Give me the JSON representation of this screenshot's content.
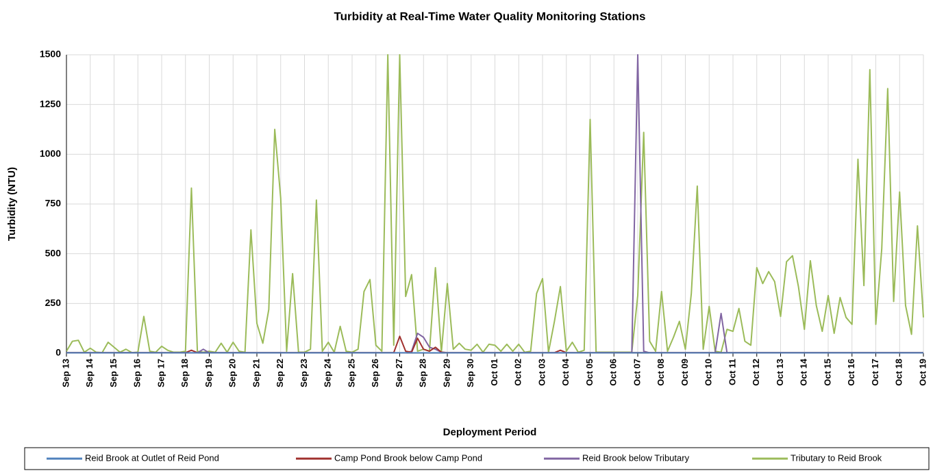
{
  "chart_data": {
    "type": "line",
    "title": "Turbidity at Real-Time Water Quality Monitoring Stations",
    "xlabel": "Deployment Period",
    "ylabel": "Turbidity (NTU)",
    "x": [
      0,
      0.25,
      0.5,
      0.75,
      1,
      1.25,
      1.5,
      1.75,
      2,
      2.25,
      2.5,
      2.75,
      3,
      3.25,
      3.5,
      3.75,
      4,
      4.25,
      4.5,
      4.75,
      5,
      5.25,
      5.5,
      5.75,
      6,
      6.25,
      6.5,
      6.75,
      7,
      7.25,
      7.5,
      7.75,
      8,
      8.25,
      8.5,
      8.75,
      9,
      9.25,
      9.5,
      9.75,
      10,
      10.25,
      10.5,
      10.75,
      11,
      11.25,
      11.5,
      11.75,
      12,
      12.25,
      12.5,
      12.75,
      13,
      13.25,
      13.5,
      13.75,
      14,
      14.25,
      14.5,
      14.75,
      15,
      15.25,
      15.5,
      15.75,
      16,
      16.25,
      16.5,
      16.75,
      17,
      17.25,
      17.5,
      17.75,
      18,
      18.25,
      18.5,
      18.75,
      19,
      19.25,
      19.5,
      19.75,
      20,
      20.25,
      20.5,
      20.75,
      21,
      21.25,
      21.5,
      21.75,
      22,
      22.25,
      22.5,
      22.75,
      23,
      23.25,
      23.5,
      23.75,
      24,
      24.25,
      24.5,
      24.75,
      25,
      25.25,
      25.5,
      25.75,
      26,
      26.25,
      26.5,
      26.75,
      27,
      27.25,
      27.5,
      27.75,
      28,
      28.25,
      28.5,
      28.75,
      29,
      29.25,
      29.5,
      29.75,
      30,
      30.25,
      30.5,
      30.75,
      31,
      31.25,
      31.5,
      31.75,
      32,
      32.25,
      32.5,
      32.75,
      33,
      33.25,
      33.5,
      33.75,
      34,
      34.25,
      34.5,
      34.75,
      35,
      35.25,
      35.5,
      35.75,
      36
    ],
    "series": [
      {
        "name": "Reid Brook at Outlet of Reid Pond",
        "color": "#4f81bd",
        "values": [
          2,
          2,
          2,
          2,
          2,
          2,
          2,
          2,
          2,
          2,
          2,
          2,
          2,
          2,
          2,
          2,
          2,
          2,
          2,
          2,
          2,
          2,
          2,
          2,
          2,
          2,
          2,
          2,
          2,
          2,
          2,
          2,
          2,
          2,
          2,
          2,
          2,
          2,
          2,
          2,
          2,
          2,
          2,
          2,
          2,
          2,
          2,
          2,
          2,
          2,
          2,
          2,
          2,
          2,
          2,
          2,
          2,
          2,
          2,
          2,
          2,
          2,
          2,
          2,
          2,
          2,
          2,
          2,
          2,
          2,
          2,
          2,
          2,
          2,
          2,
          2,
          2,
          2,
          2,
          2,
          2,
          2,
          2,
          2,
          2,
          2,
          2,
          2,
          2,
          2,
          2,
          2,
          2,
          2,
          2,
          2,
          2,
          2,
          2,
          2,
          2,
          2,
          2,
          2,
          2,
          2,
          2,
          2,
          2,
          2,
          2,
          2,
          2,
          2,
          2,
          2,
          2,
          2,
          2,
          2,
          2,
          2,
          2,
          2,
          2,
          2,
          2,
          2,
          2,
          2,
          2,
          2,
          2,
          2,
          2,
          2,
          2,
          2,
          2,
          2,
          2,
          2,
          2,
          2,
          2
        ]
      },
      {
        "name": "Camp Pond Brook below Camp Pond",
        "color": "#a0302d",
        "values": [
          3,
          3,
          3,
          3,
          3,
          3,
          3,
          3,
          3,
          3,
          3,
          3,
          3,
          3,
          3,
          3,
          3,
          3,
          3,
          3,
          3,
          15,
          3,
          3,
          3,
          3,
          3,
          3,
          3,
          3,
          3,
          3,
          3,
          3,
          3,
          3,
          3,
          3,
          3,
          3,
          3,
          3,
          3,
          3,
          3,
          3,
          3,
          3,
          3,
          3,
          3,
          3,
          3,
          3,
          3,
          3,
          85,
          10,
          5,
          75,
          20,
          10,
          30,
          5,
          3,
          3,
          3,
          3,
          3,
          3,
          3,
          3,
          3,
          3,
          3,
          3,
          3,
          3,
          3,
          3,
          3,
          3,
          3,
          15,
          3,
          3,
          3,
          3,
          3,
          3,
          3,
          3,
          3,
          3,
          3,
          3,
          3,
          3,
          3,
          3,
          3,
          3,
          3,
          3,
          3,
          3,
          3,
          3,
          3,
          3,
          3,
          3,
          3,
          3,
          3,
          3,
          3,
          3,
          3,
          3,
          3,
          3,
          3,
          3,
          3,
          3,
          3,
          3,
          3,
          3,
          3,
          3,
          3,
          3,
          3,
          3,
          3,
          3,
          3,
          3,
          3,
          3,
          3,
          3,
          3
        ]
      },
      {
        "name": "Reid Brook below Tributary",
        "color": "#8064a2",
        "values": [
          2,
          2,
          2,
          2,
          2,
          2,
          2,
          2,
          2,
          2,
          2,
          2,
          2,
          2,
          2,
          2,
          2,
          2,
          2,
          2,
          2,
          2,
          2,
          20,
          2,
          2,
          2,
          2,
          2,
          2,
          2,
          2,
          2,
          2,
          2,
          2,
          2,
          2,
          2,
          2,
          2,
          2,
          2,
          2,
          2,
          2,
          2,
          2,
          2,
          2,
          2,
          2,
          2,
          2,
          2,
          2,
          2,
          2,
          10,
          100,
          80,
          30,
          20,
          5,
          2,
          2,
          2,
          2,
          2,
          2,
          2,
          2,
          2,
          2,
          2,
          2,
          2,
          2,
          2,
          2,
          2,
          2,
          2,
          2,
          2,
          2,
          2,
          2,
          2,
          2,
          2,
          2,
          2,
          2,
          2,
          2,
          1500,
          10,
          2,
          2,
          2,
          2,
          2,
          2,
          2,
          2,
          2,
          2,
          2,
          2,
          200,
          2,
          2,
          2,
          2,
          2,
          2,
          2,
          2,
          2,
          2,
          2,
          2,
          2,
          2,
          2,
          2,
          2,
          2,
          2,
          2,
          2,
          2,
          2,
          2,
          2,
          2,
          2,
          2,
          2,
          2,
          2,
          2,
          2,
          2
        ]
      },
      {
        "name": "Tributary to Reid Brook",
        "color": "#9bbb59",
        "values": [
          10,
          60,
          65,
          5,
          25,
          5,
          3,
          55,
          30,
          5,
          20,
          3,
          5,
          185,
          10,
          5,
          35,
          15,
          5,
          5,
          10,
          830,
          10,
          5,
          10,
          5,
          50,
          5,
          55,
          10,
          5,
          620,
          150,
          50,
          220,
          1125,
          780,
          10,
          400,
          5,
          5,
          20,
          770,
          10,
          55,
          5,
          135,
          10,
          5,
          20,
          310,
          370,
          40,
          10,
          1500,
          40,
          1500,
          285,
          395,
          10,
          20,
          10,
          430,
          5,
          350,
          20,
          50,
          20,
          15,
          45,
          5,
          45,
          40,
          10,
          45,
          10,
          45,
          5,
          10,
          300,
          375,
          5,
          160,
          335,
          10,
          55,
          5,
          15,
          1175,
          5,
          5,
          5,
          5,
          5,
          5,
          5,
          290,
          1110,
          60,
          10,
          310,
          10,
          80,
          160,
          20,
          300,
          840,
          20,
          235,
          10,
          5,
          120,
          110,
          225,
          60,
          40,
          430,
          350,
          410,
          360,
          185,
          460,
          490,
          335,
          120,
          465,
          240,
          110,
          290,
          100,
          280,
          180,
          145,
          975,
          340,
          1425,
          145,
          525,
          1330,
          260,
          810,
          240,
          95,
          640,
          180
        ]
      }
    ],
    "xlim": [
      0,
      36
    ],
    "xticks": [
      {
        "value": 0,
        "label": "Sep 13"
      },
      {
        "value": 1,
        "label": "Sep 14"
      },
      {
        "value": 2,
        "label": "Sep 15"
      },
      {
        "value": 3,
        "label": "Sep 16"
      },
      {
        "value": 4,
        "label": "Sep 17"
      },
      {
        "value": 5,
        "label": "Sep 18"
      },
      {
        "value": 6,
        "label": "Sep 19"
      },
      {
        "value": 7,
        "label": "Sep 20"
      },
      {
        "value": 8,
        "label": "Sep 21"
      },
      {
        "value": 9,
        "label": "Sep 22"
      },
      {
        "value": 10,
        "label": "Sep 23"
      },
      {
        "value": 11,
        "label": "Sep 24"
      },
      {
        "value": 12,
        "label": "Sep 25"
      },
      {
        "value": 13,
        "label": "Sep 26"
      },
      {
        "value": 14,
        "label": "Sep 27"
      },
      {
        "value": 15,
        "label": "Sep 28"
      },
      {
        "value": 16,
        "label": "Sep 29"
      },
      {
        "value": 17,
        "label": "Sep 30"
      },
      {
        "value": 18,
        "label": "Oct 01"
      },
      {
        "value": 19,
        "label": "Oct 02"
      },
      {
        "value": 20,
        "label": "Oct 03"
      },
      {
        "value": 21,
        "label": "Oct 04"
      },
      {
        "value": 22,
        "label": "Oct 05"
      },
      {
        "value": 23,
        "label": "Oct 06"
      },
      {
        "value": 24,
        "label": "Oct 07"
      },
      {
        "value": 25,
        "label": "Oct 08"
      },
      {
        "value": 26,
        "label": "Oct 09"
      },
      {
        "value": 27,
        "label": "Oct 10"
      },
      {
        "value": 28,
        "label": "Oct 11"
      },
      {
        "value": 29,
        "label": "Oct 12"
      },
      {
        "value": 30,
        "label": "Oct 13"
      },
      {
        "value": 31,
        "label": "Oct 14"
      },
      {
        "value": 32,
        "label": "Oct 15"
      },
      {
        "value": 33,
        "label": "Oct 16"
      },
      {
        "value": 34,
        "label": "Oct 17"
      },
      {
        "value": 35,
        "label": "Oct 18"
      },
      {
        "value": 36,
        "label": "Oct 19"
      }
    ],
    "ylim": [
      0,
      1500
    ],
    "yticks": [
      0,
      250,
      500,
      750,
      1000,
      1250,
      1500
    ],
    "grid": true,
    "legend": "bottom"
  }
}
